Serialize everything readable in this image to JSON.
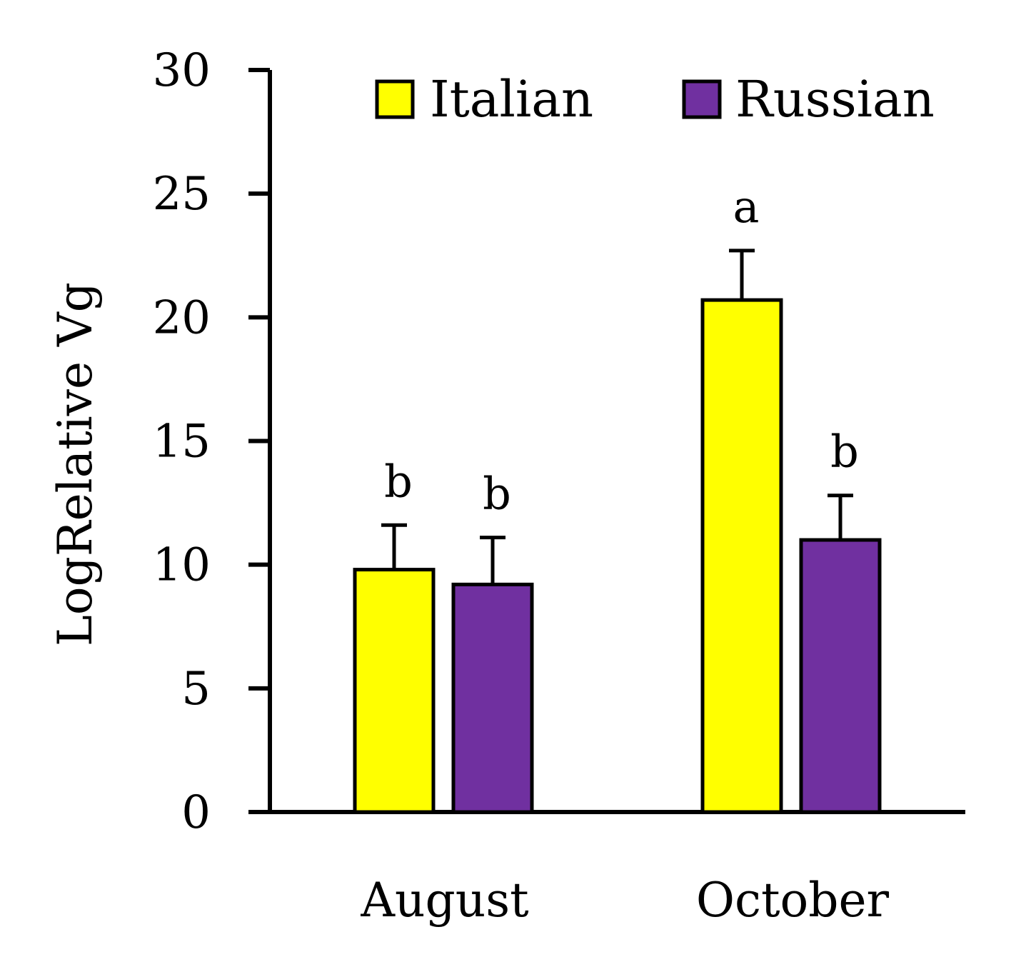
{
  "chart_data": {
    "type": "bar",
    "title": "",
    "xlabel": "",
    "ylabel": "LogRelative Vg",
    "ylim": [
      0,
      30
    ],
    "yticks": [
      0,
      5,
      10,
      15,
      20,
      25,
      30
    ],
    "categories": [
      "August",
      "October"
    ],
    "series": [
      {
        "name": "Italian",
        "color": "#ffff00",
        "values": [
          9.8,
          20.7
        ],
        "errors": [
          1.8,
          2.0
        ],
        "significance": [
          "b",
          "a"
        ]
      },
      {
        "name": "Russian",
        "color": "#7030a0",
        "values": [
          9.2,
          11.0
        ],
        "errors": [
          1.9,
          1.8
        ],
        "significance": [
          "b",
          "b"
        ]
      }
    ],
    "legend_position": "top",
    "grid": false
  }
}
